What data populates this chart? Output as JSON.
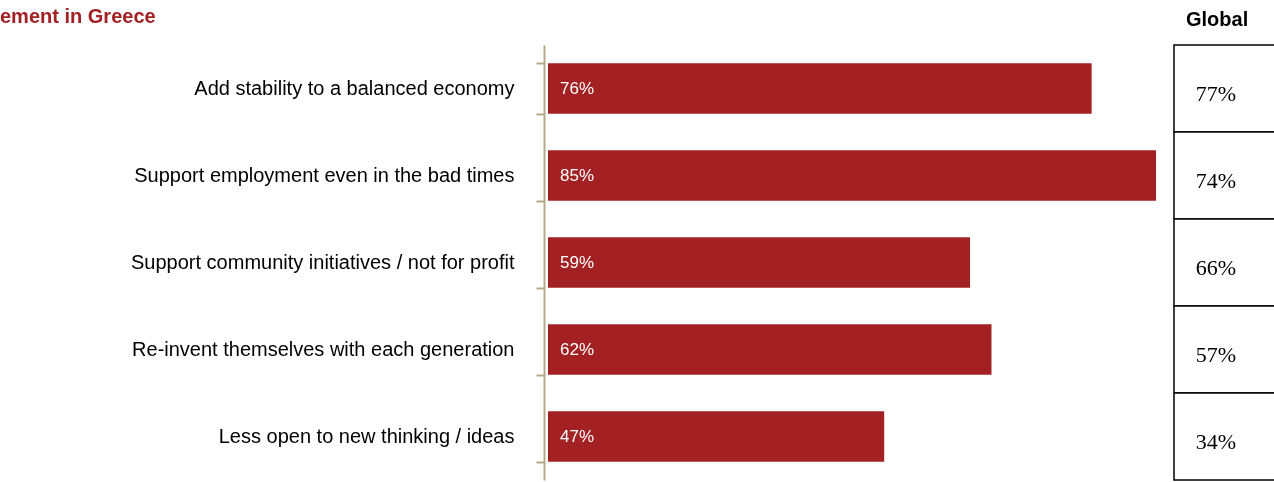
{
  "chart_data": [
    {
      "type": "bar",
      "orientation": "horizontal",
      "title": "ement in Greece",
      "categories": [
        "Add stability to a balanced economy",
        "Support employment even in the bad times",
        "Support community initiatives / not for profit",
        "Re-invent themselves with each generation",
        "Less open to new thinking / ideas"
      ],
      "values": [
        76,
        85,
        59,
        62,
        47
      ],
      "color": "#a32023",
      "value_labels": [
        "76%",
        "85%",
        "59%",
        "62%",
        "47%"
      ]
    },
    {
      "type": "other",
      "title": "Global",
      "annotations": [
        "77%",
        "74%",
        "66%",
        "57%",
        "34%"
      ]
    }
  ]
}
